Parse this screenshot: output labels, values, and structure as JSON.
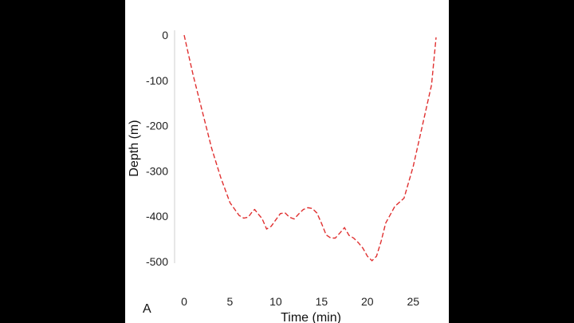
{
  "chart_data": {
    "type": "line",
    "panel_label": "A",
    "xlabel": "Time (min)",
    "ylabel": "Depth (m)",
    "xlim": [
      0,
      27.5
    ],
    "ylim": [
      -500,
      0
    ],
    "x_ticks": [
      0,
      5,
      10,
      15,
      20,
      25
    ],
    "y_ticks": [
      0,
      -100,
      -200,
      -300,
      -400,
      -500
    ],
    "grid": false,
    "line_color": "#e03030",
    "line_style": "dashed",
    "series": [
      {
        "x": [
          0,
          0.5,
          1,
          2,
          3,
          4,
          5,
          6,
          6.5,
          7,
          7.5,
          7.7,
          8,
          8.5,
          9,
          9.5,
          10,
          10.5,
          11,
          11.5,
          12,
          12.5,
          13,
          13.5,
          14,
          14.5,
          15,
          15.5,
          16,
          16.5,
          17,
          17.5,
          18,
          18.5,
          19,
          19.5,
          20,
          20.5,
          21,
          21.5,
          22,
          23,
          24,
          25,
          26,
          27,
          27.5
        ],
        "y": [
          0,
          -45,
          -90,
          -170,
          -250,
          -315,
          -370,
          -398,
          -404,
          -402,
          -388,
          -385,
          -393,
          -405,
          -428,
          -422,
          -408,
          -394,
          -392,
          -402,
          -406,
          -395,
          -385,
          -381,
          -383,
          -393,
          -416,
          -441,
          -448,
          -448,
          -437,
          -425,
          -442,
          -448,
          -458,
          -470,
          -488,
          -498,
          -488,
          -455,
          -415,
          -378,
          -360,
          -290,
          -200,
          -110,
          -5
        ]
      }
    ]
  }
}
